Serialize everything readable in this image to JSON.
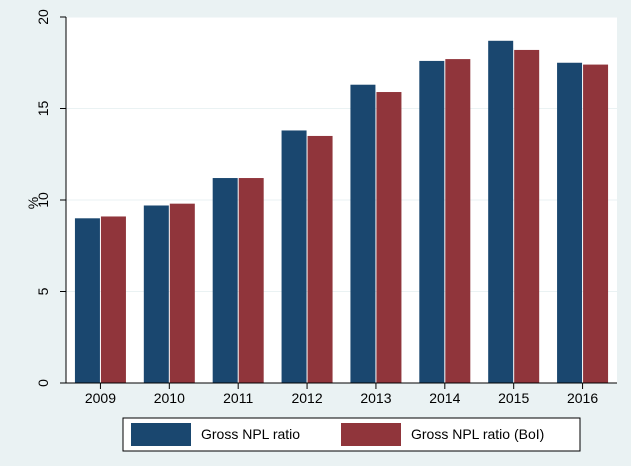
{
  "chart_data": {
    "type": "bar",
    "title": "",
    "xlabel": "",
    "ylabel": "%",
    "ylim": [
      0,
      20
    ],
    "yticks": [
      0,
      5,
      10,
      15,
      20
    ],
    "grid": true,
    "legend_position": "bottom",
    "categories": [
      "2009",
      "2010",
      "2011",
      "2012",
      "2013",
      "2014",
      "2015",
      "2016"
    ],
    "series": [
      {
        "name": "Gross NPL ratio",
        "color": "#1a476f",
        "values": [
          9.0,
          9.7,
          11.2,
          13.8,
          16.3,
          17.6,
          18.7,
          17.5
        ]
      },
      {
        "name": "Gross NPL ratio (BoI)",
        "color": "#90353b",
        "values": [
          9.1,
          9.8,
          11.2,
          13.5,
          15.9,
          17.7,
          18.2,
          17.4
        ]
      }
    ]
  }
}
